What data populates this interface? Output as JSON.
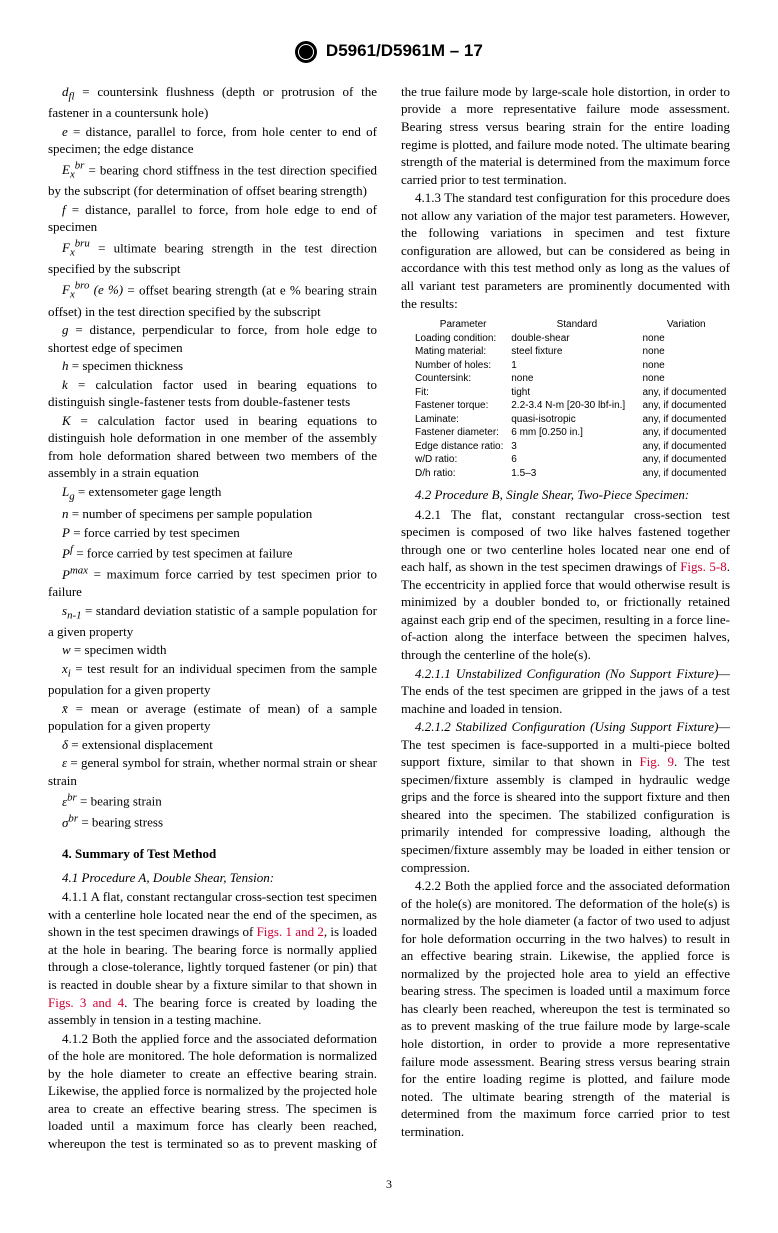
{
  "header": {
    "designation": "D5961/D5961M – 17"
  },
  "defs": [
    {
      "sym": "d<sub>fl</sub>",
      "text": " = countersink flushness (depth or protrusion of the fastener in a countersunk hole)"
    },
    {
      "sym": "e",
      "text": " = distance, parallel to force, from hole center to end of specimen; the edge distance"
    },
    {
      "sym": "E<sub>x</sub><sup>br</sup>",
      "text": " = bearing chord stiffness in the test direction specified by the subscript (for determination of offset bearing strength)"
    },
    {
      "sym": "f",
      "text": " = distance, parallel to force, from hole edge to end of specimen"
    },
    {
      "sym": "F<sub>x</sub><sup>bru</sup>",
      "text": " = ultimate bearing strength in the test direction specified by the subscript"
    },
    {
      "sym": "F<sub>x</sub><sup>bro</sup> (e %)",
      "text": " = offset bearing strength (at e % bearing strain offset) in the test direction specified by the subscript"
    },
    {
      "sym": "g",
      "text": " = distance, perpendicular to force, from hole edge to shortest edge of specimen"
    },
    {
      "sym": "h",
      "text": " = specimen thickness"
    },
    {
      "sym": "k",
      "text": " = calculation factor used in bearing equations to distinguish single-fastener tests from double-fastener tests"
    },
    {
      "sym": "K",
      "text": " = calculation factor used in bearing equations to distinguish hole deformation in one member of the assembly from hole deformation shared between two members of the assembly in a strain equation"
    },
    {
      "sym": "L<sub>g</sub>",
      "text": " = extensometer gage length"
    },
    {
      "sym": "n",
      "text": " = number of specimens per sample population"
    },
    {
      "sym": "P",
      "text": " = force carried by test specimen"
    },
    {
      "sym": "P<sup>f</sup>",
      "text": " = force carried by test specimen at failure"
    },
    {
      "sym": "P<sup>max</sup>",
      "text": " = maximum force carried by test specimen prior to failure"
    },
    {
      "sym": "s<sub>n-1</sub>",
      "text": " = standard deviation statistic of a sample population for a given property"
    },
    {
      "sym": "w",
      "text": " = specimen width"
    },
    {
      "sym": "x<sub>i</sub>",
      "text": " = test result for an individual specimen from the sample population for a given property"
    },
    {
      "sym": "x̄",
      "text": " = mean or average (estimate of mean) of a sample population for a given property"
    },
    {
      "sym": "δ",
      "text": " = extensional displacement"
    },
    {
      "sym": "ε",
      "text": " = general symbol for strain, whether normal strain or shear strain"
    },
    {
      "sym": "ε<sup>br</sup>",
      "text": " = bearing strain"
    },
    {
      "sym": "σ<sup>br</sup>",
      "text": " = bearing stress"
    }
  ],
  "s4": {
    "title": "4. Summary of Test Method",
    "s41": {
      "head": "4.1 Procedure A, Double Shear, Tension:",
      "p411a": "4.1.1 A flat, constant rectangular cross-section test specimen with a centerline hole located near the end of the specimen, as shown in the test specimen drawings of ",
      "fig12": "Figs. 1 and 2",
      "p411b": ", is loaded at the hole in bearing. The bearing force is normally applied through a close-tolerance, lightly torqued fastener (or pin) that is reacted in double shear by a fixture similar to that shown in ",
      "fig34": "Figs. 3 and 4",
      "p411c": ". The bearing force is created by loading the assembly in tension in a testing machine.",
      "p412": "4.1.2 Both the applied force and the associated deformation of the hole are monitored. The hole deformation is normalized by the hole diameter to create an effective bearing strain. Likewise, the applied force is normalized by the projected hole area to create an effective bearing stress. The specimen is loaded until a maximum force has clearly been reached, whereupon the test is terminated so as to prevent masking of the true failure mode by large-scale hole distortion, in order to provide a more representative failure mode assessment. Bearing stress versus bearing strain for the entire loading regime is plotted, and failure mode noted. The ultimate bearing strength of the material is determined from the maximum force carried prior to test termination.",
      "p413": "4.1.3 The standard test configuration for this procedure does not allow any variation of the major test parameters. However, the following variations in specimen and test fixture configuration are allowed, but can be considered as being in accordance with this test method only as long as the values of all variant test parameters are prominently documented with the results:"
    },
    "table": {
      "headers": [
        "Parameter",
        "Standard",
        "Variation"
      ],
      "rows": [
        [
          "Loading condition:",
          "double-shear",
          "none"
        ],
        [
          "Mating material:",
          "steel fixture",
          "none"
        ],
        [
          "Number of holes:",
          "1",
          "none"
        ],
        [
          "Countersink:",
          "none",
          "none"
        ],
        [
          "Fit:",
          "tight",
          "any, if documented"
        ],
        [
          "Fastener torque:",
          "2.2-3.4 N-m [20-30 lbf-in.]",
          "any, if documented"
        ],
        [
          "Laminate:",
          "quasi-isotropic",
          "any, if documented"
        ],
        [
          "Fastener diameter:",
          "6 mm [0.250 in.]",
          "any, if documented"
        ],
        [
          "Edge distance ratio:",
          "3",
          "any, if documented"
        ],
        [
          "w/D ratio:",
          "6",
          "any, if documented"
        ],
        [
          "D/h ratio:",
          "1.5–3",
          "any, if documented"
        ]
      ]
    },
    "s42": {
      "head": "4.2 Procedure B, Single Shear, Two-Piece Specimen:",
      "p421a": "4.2.1 The flat, constant rectangular cross-section test specimen is composed of two like halves fastened together through one or two centerline holes located near one end of each half, as shown in the test specimen drawings of ",
      "fig58": "Figs. 5-8",
      "p421b": ". The eccentricity in applied force that would otherwise result is minimized by a doubler bonded to, or frictionally retained against each grip end of the specimen, resulting in a force line-of-action along the interface between the specimen halves, through the centerline of the hole(s).",
      "p4211_head": "4.2.1.1 Unstabilized Configuration (No Support Fixture)—",
      "p4211": "The ends of the test specimen are gripped in the jaws of a test machine and loaded in tension.",
      "p4212_head": "4.2.1.2 Stabilized Configuration (Using Support Fixture)—",
      "p4212a": "The test specimen is face-supported in a multi-piece bolted support fixture, similar to that shown in ",
      "fig9": "Fig. 9",
      "p4212b": ". The test specimen/fixture assembly is clamped in hydraulic wedge grips and the force is sheared into the support fixture and then sheared into the specimen. The stabilized configuration is primarily intended for compressive loading, although the specimen/fixture assembly may be loaded in either tension or compression.",
      "p422": "4.2.2 Both the applied force and the associated deformation of the hole(s) are monitored. The deformation of the hole(s) is normalized by the hole diameter (a factor of two used to adjust for hole deformation occurring in the two halves) to result in an effective bearing strain. Likewise, the applied force is normalized by the projected hole area to yield an effective bearing stress. The specimen is loaded until a maximum force has clearly been reached, whereupon the test is terminated so as to prevent masking of the true failure mode by large-scale hole distortion, in order to provide a more representative failure mode assessment. Bearing stress versus bearing strain for the entire loading regime is plotted, and failure mode noted. The ultimate bearing strength of the material is determined from the maximum force carried prior to test termination."
    }
  },
  "footer": {
    "page": "3"
  }
}
